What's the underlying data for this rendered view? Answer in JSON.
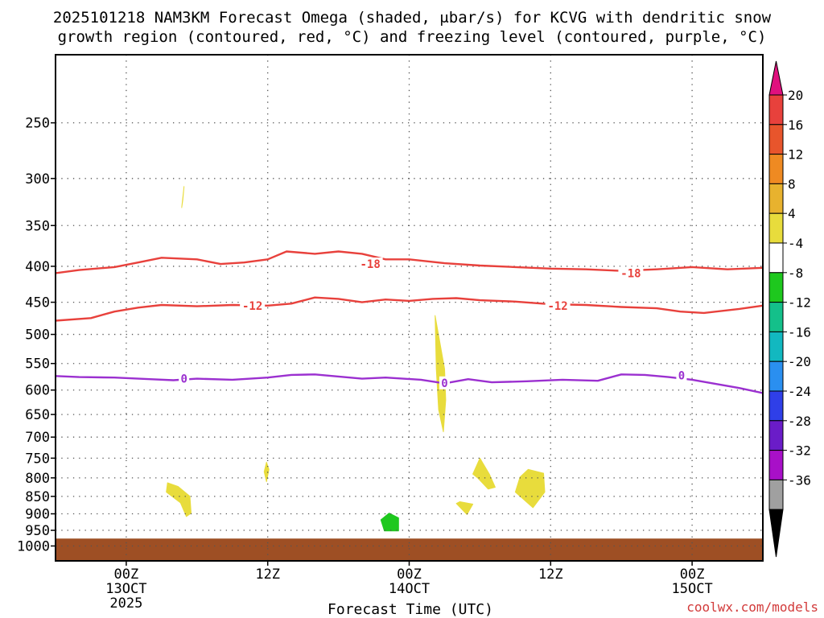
{
  "title_line1": "2025101218 NAM3KM Forecast Omega (shaded, μbar/s) for KCVG with dendritic snow",
  "title_line2": "growth region (contoured, red, °C) and freezing level (contoured, purple, °C)",
  "xlabel": "Forecast Time (UTC)",
  "credit": "coolwx.com/models",
  "chart_data": {
    "type": "time-height cross section",
    "x_range_hours": [
      -6,
      54
    ],
    "y_axis": {
      "scale": "pressure (hPa)",
      "range": [
        1050,
        200
      ],
      "ticks": [
        250,
        300,
        350,
        400,
        450,
        500,
        550,
        600,
        650,
        700,
        750,
        800,
        850,
        900,
        950,
        1000
      ]
    },
    "x_ticks": [
      {
        "hour": 0,
        "line1": "00Z",
        "line2": "13OCT",
        "line3": "2025"
      },
      {
        "hour": 12,
        "line1": "12Z",
        "line2": "",
        "line3": ""
      },
      {
        "hour": 24,
        "line1": "00Z",
        "line2": "14OCT",
        "line3": ""
      },
      {
        "hour": 36,
        "line1": "12Z",
        "line2": "",
        "line3": ""
      },
      {
        "hour": 48,
        "line1": "00Z",
        "line2": "15OCT",
        "line3": ""
      }
    ],
    "contours": [
      {
        "name": "minus18",
        "label": "-18",
        "color": "#e8413c",
        "label_at": [
          [
            20.7,
            397
          ],
          [
            42.8,
            409
          ]
        ],
        "points": [
          [
            -6,
            409
          ],
          [
            -4,
            405
          ],
          [
            -1,
            401
          ],
          [
            1,
            395
          ],
          [
            3,
            389
          ],
          [
            6,
            391
          ],
          [
            8,
            397
          ],
          [
            10,
            395
          ],
          [
            12,
            391
          ],
          [
            13.6,
            381
          ],
          [
            16,
            384
          ],
          [
            18,
            381
          ],
          [
            20,
            384
          ],
          [
            22,
            391
          ],
          [
            24,
            391
          ],
          [
            27,
            396
          ],
          [
            30,
            399
          ],
          [
            33,
            401
          ],
          [
            36,
            403
          ],
          [
            39,
            404
          ],
          [
            42,
            406
          ],
          [
            45,
            404
          ],
          [
            48,
            401
          ],
          [
            51,
            404
          ],
          [
            54,
            402
          ]
        ]
      },
      {
        "name": "minus12",
        "label": "-12",
        "color": "#e8413c",
        "label_at": [
          [
            10.7,
            455
          ],
          [
            36.6,
            455
          ]
        ],
        "points": [
          [
            -6,
            478
          ],
          [
            -3,
            474
          ],
          [
            -1,
            464
          ],
          [
            1,
            458
          ],
          [
            3,
            454
          ],
          [
            6,
            456
          ],
          [
            9,
            454
          ],
          [
            12,
            455
          ],
          [
            14,
            452
          ],
          [
            16,
            443
          ],
          [
            18,
            445
          ],
          [
            20,
            450
          ],
          [
            22,
            446
          ],
          [
            24,
            448
          ],
          [
            26,
            445
          ],
          [
            28,
            444
          ],
          [
            30,
            447
          ],
          [
            33,
            449
          ],
          [
            36,
            453
          ],
          [
            39,
            454
          ],
          [
            42,
            457
          ],
          [
            45,
            459
          ],
          [
            47,
            464
          ],
          [
            49,
            466
          ],
          [
            52,
            460
          ],
          [
            54,
            455
          ]
        ]
      },
      {
        "name": "zero",
        "label": "0",
        "color": "#9b30d0",
        "label_at": [
          [
            4.9,
            578
          ],
          [
            27,
            586
          ],
          [
            47.1,
            572
          ]
        ],
        "points": [
          [
            -6,
            573
          ],
          [
            -4,
            575
          ],
          [
            -1,
            576
          ],
          [
            2,
            579
          ],
          [
            4,
            581
          ],
          [
            6,
            578
          ],
          [
            9,
            580
          ],
          [
            12,
            576
          ],
          [
            14,
            571
          ],
          [
            16,
            570
          ],
          [
            18,
            574
          ],
          [
            20,
            578
          ],
          [
            22,
            576
          ],
          [
            25,
            580
          ],
          [
            27,
            587
          ],
          [
            29,
            579
          ],
          [
            31,
            585
          ],
          [
            34,
            583
          ],
          [
            37,
            580
          ],
          [
            40,
            582
          ],
          [
            42,
            570
          ],
          [
            44,
            571
          ],
          [
            46,
            575
          ],
          [
            48,
            580
          ],
          [
            50,
            588
          ],
          [
            52,
            596
          ],
          [
            54,
            606
          ]
        ]
      }
    ],
    "shaded_regions": [
      {
        "name": "omega-pos-a",
        "color": "#e8dc3c",
        "polygon": [
          [
            4.7,
            330
          ],
          [
            4.9,
            308
          ],
          [
            4.8,
            322
          ]
        ]
      },
      {
        "name": "omega-pos-b",
        "color": "#e8dc3c",
        "polygon": [
          [
            3.5,
            813
          ],
          [
            4.4,
            823
          ],
          [
            5.4,
            850
          ],
          [
            5.5,
            898
          ],
          [
            5.1,
            908
          ],
          [
            4.6,
            868
          ],
          [
            3.4,
            838
          ]
        ]
      },
      {
        "name": "omega-pos-c",
        "color": "#e8dc3c",
        "polygon": [
          [
            11.9,
            760
          ],
          [
            12.1,
            778
          ],
          [
            11.9,
            810
          ],
          [
            11.7,
            784
          ]
        ]
      },
      {
        "name": "omega-pos-d",
        "color": "#e8dc3c",
        "polygon": [
          [
            26.2,
            470
          ],
          [
            27.0,
            560
          ],
          [
            27.1,
            620
          ],
          [
            26.9,
            688
          ],
          [
            26.5,
            640
          ],
          [
            26.3,
            560
          ]
        ]
      },
      {
        "name": "omega-pos-e",
        "color": "#e8dc3c",
        "polygon": [
          [
            28.3,
            865
          ],
          [
            29.4,
            872
          ],
          [
            28.9,
            902
          ],
          [
            28.0,
            870
          ]
        ]
      },
      {
        "name": "omega-pos-f",
        "color": "#e8dc3c",
        "polygon": [
          [
            30.0,
            750
          ],
          [
            30.8,
            790
          ],
          [
            31.3,
            825
          ],
          [
            30.7,
            830
          ],
          [
            29.8,
            800
          ],
          [
            29.4,
            790
          ]
        ]
      },
      {
        "name": "omega-pos-g",
        "color": "#e8dc3c",
        "polygon": [
          [
            34.1,
            778
          ],
          [
            35.4,
            788
          ],
          [
            35.5,
            838
          ],
          [
            34.5,
            882
          ],
          [
            33.0,
            838
          ],
          [
            33.4,
            798
          ]
        ]
      },
      {
        "name": "omega-neg-a",
        "color": "#1ec81e",
        "polygon": [
          [
            22.3,
            898
          ],
          [
            23.1,
            912
          ],
          [
            23.1,
            952
          ],
          [
            21.9,
            952
          ],
          [
            21.6,
            918
          ]
        ]
      }
    ],
    "ground_fill": {
      "color": "#9e4f24",
      "top_pressure": 976
    },
    "colorbar": {
      "labels": [
        "20",
        "16",
        "12",
        "8",
        "4",
        "-4",
        "-8",
        "-12",
        "-16",
        "-20",
        "-24",
        "-28",
        "-32",
        "-36"
      ],
      "segments": [
        "#e8413c",
        "#e8552c",
        "#ef8a22",
        "#e8b22e",
        "#e8dc3c",
        "#ffffff",
        "#1ec81e",
        "#14c08a",
        "#12b8c0",
        "#2a8ff0",
        "#2f3fe8",
        "#6a1cc8",
        "#a810c8",
        "#a0a0a0"
      ],
      "top_arrow_color": "#e0107e",
      "bottom_arrow_color": "#000000"
    }
  }
}
